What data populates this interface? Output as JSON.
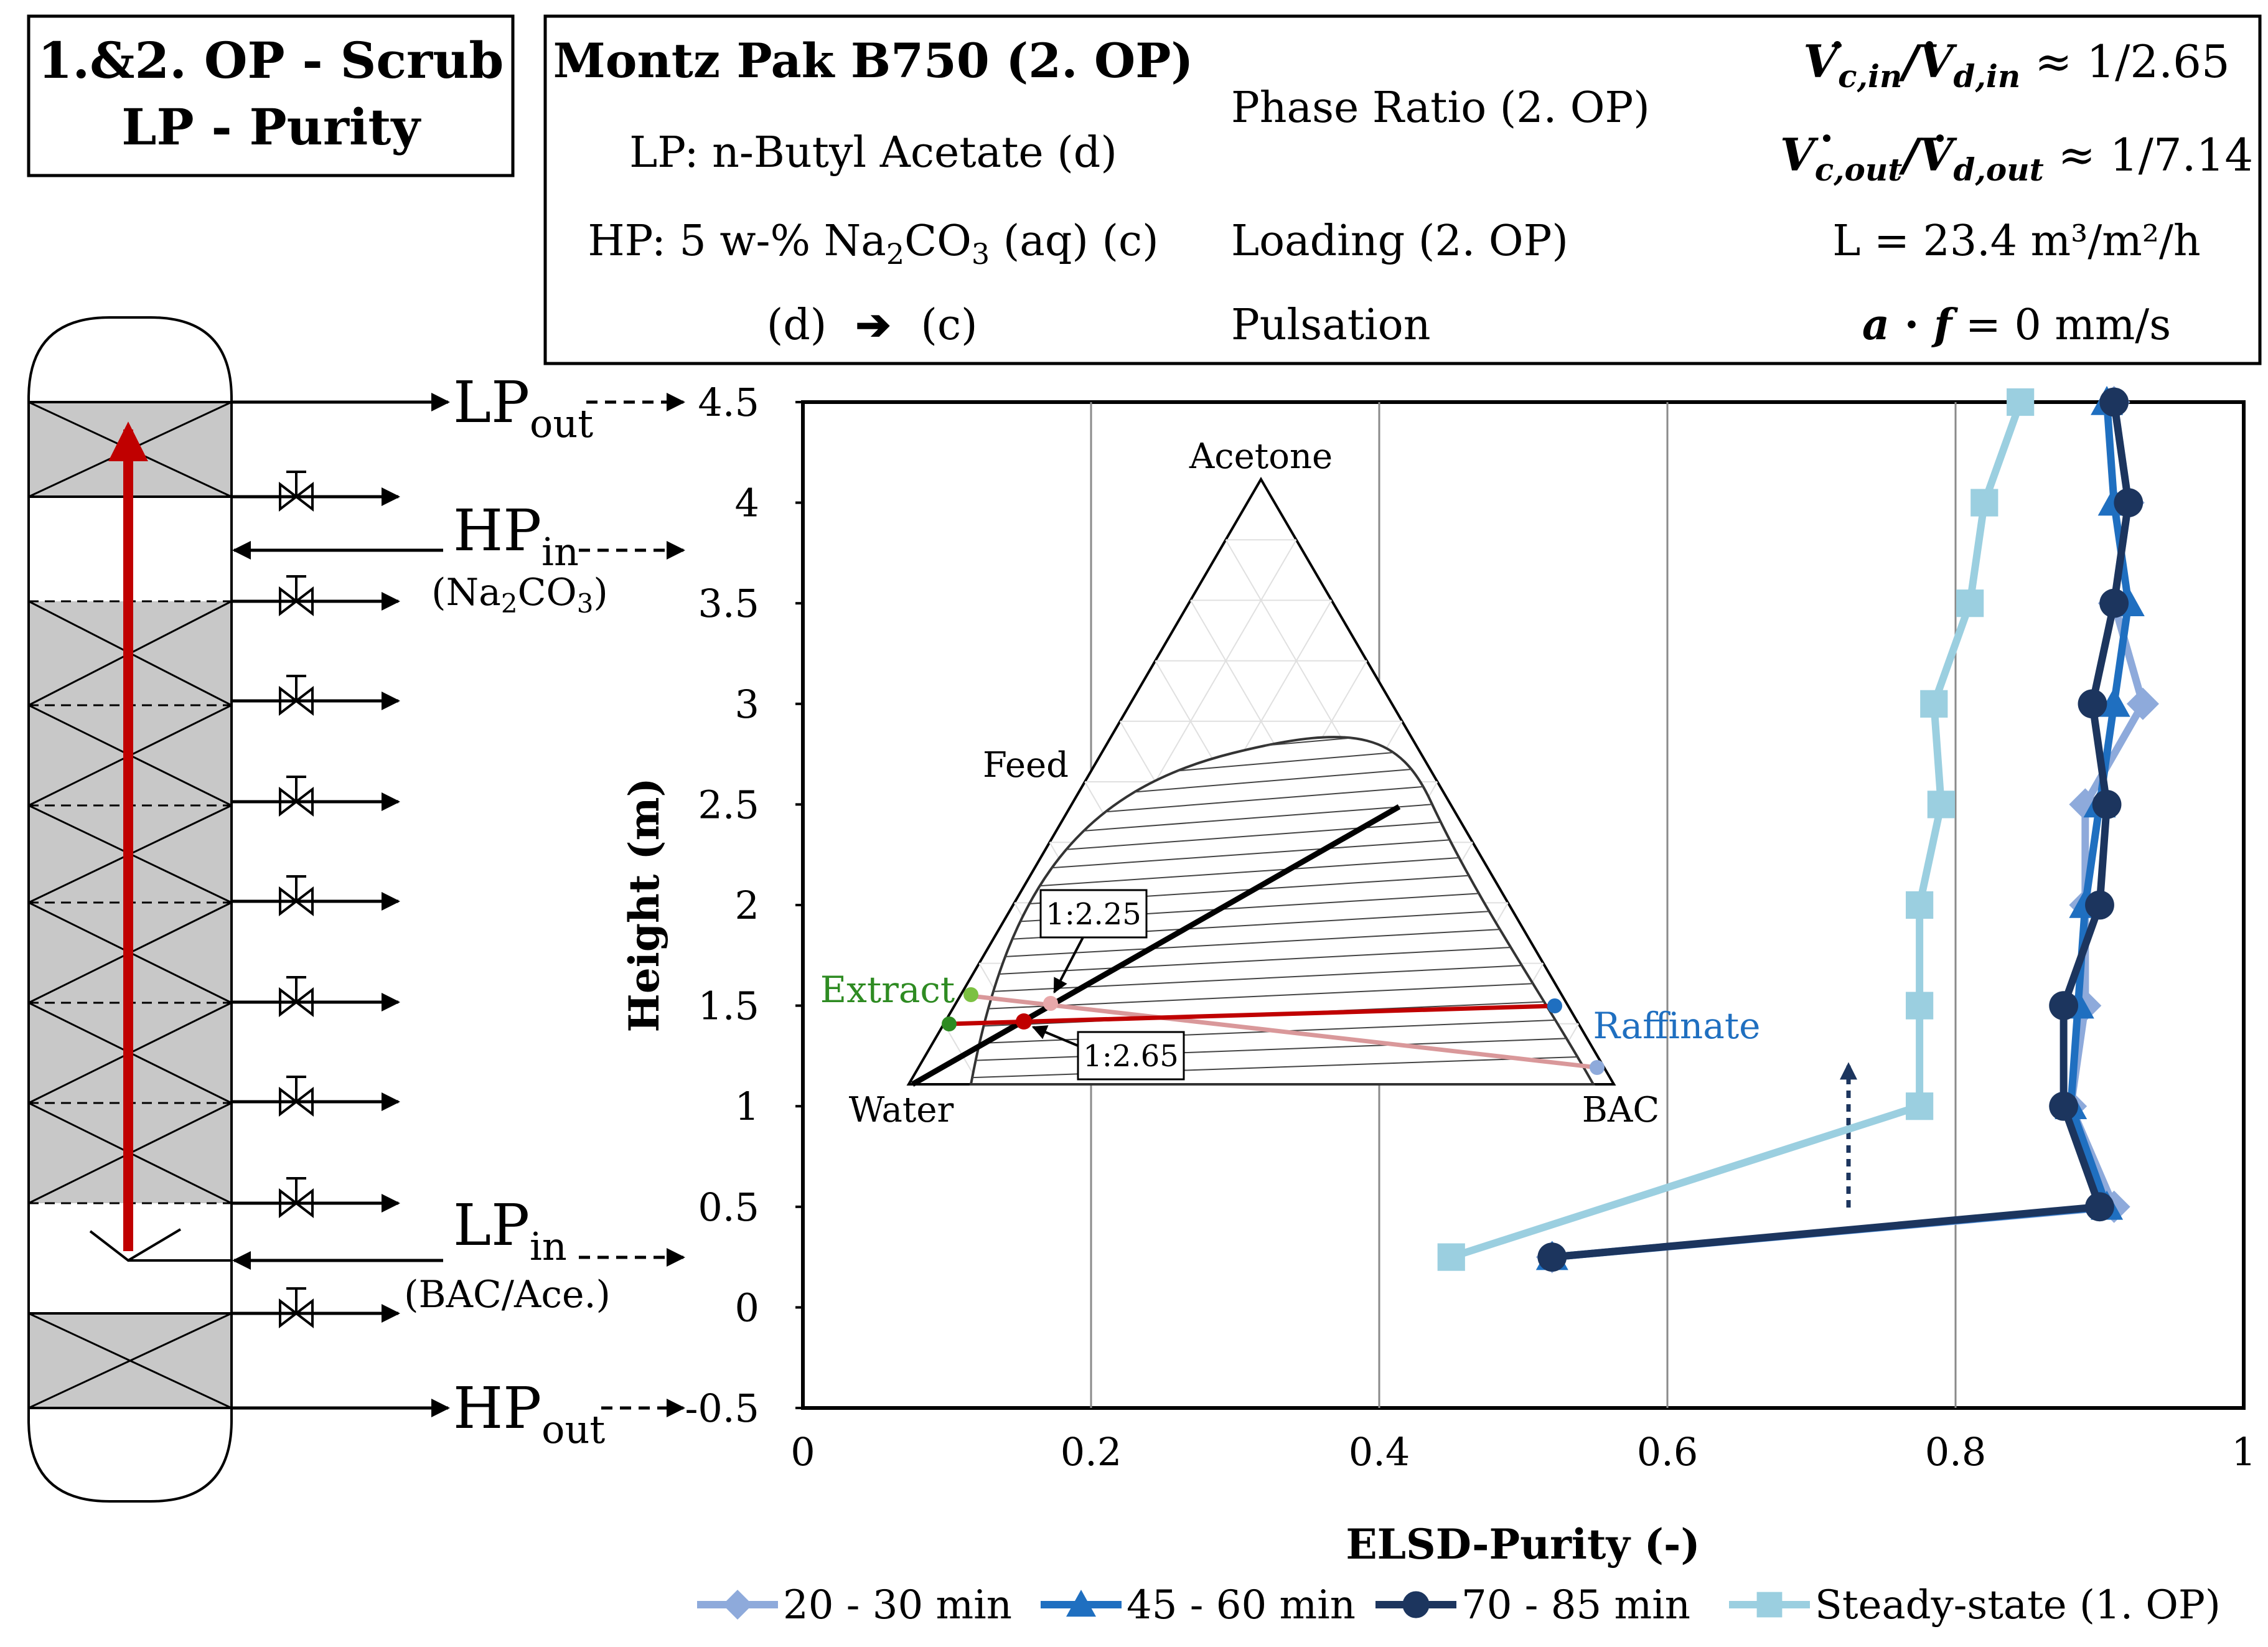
{
  "title_box": {
    "line1": "1.&2. OP - Scrub",
    "line2": "LP - Purity"
  },
  "info_box": {
    "packing": "Montz Pak B750 (2. OP)",
    "lp": "LP: n-Butyl Acetate (d)",
    "hp_prefix": "HP: 5 w-% Na",
    "hp_sub2": "2",
    "hp_mid": "CO",
    "hp_sub3": "3",
    "hp_suffix": " (aq) (c)",
    "dispersion_d": "(d)",
    "dispersion_c": "(c)",
    "phase_ratio_label": "Phase Ratio (2. OP)",
    "ratio_in_V1": "V",
    "ratio_in_sub1": "c,in",
    "ratio_in_slash": "/",
    "ratio_in_V2": "V",
    "ratio_in_sub2": "d,in",
    "ratio_in_value": " ≈ 1/2.65",
    "ratio_out_V1": "V",
    "ratio_out_sub1": "c,out",
    "ratio_out_slash": "/",
    "ratio_out_V2": "V",
    "ratio_out_sub2": "d,out",
    "ratio_out_value": " ≈ 1/7.14",
    "loading_label": "Loading (2. OP)",
    "loading_value": "L = 23.4 m³/m²/h",
    "pulsation_label": "Pulsation",
    "pulsation_a": "a",
    "pulsation_dot": " · ",
    "pulsation_f": "f",
    "pulsation_value": " = 0 mm/s"
  },
  "column": {
    "lp_out": "LP",
    "lp_out_sub": "out",
    "hp_in": "HP",
    "hp_in_sub": "in",
    "hp_in_note_pre": "(Na",
    "hp_in_note_sub2": "2",
    "hp_in_note_mid": "CO",
    "hp_in_note_sub3": "3",
    "hp_in_note_post": ")",
    "lp_in": "LP",
    "lp_in_sub": "in",
    "lp_in_note": "(BAC/Ace.)",
    "hp_out": "HP",
    "hp_out_sub": "out"
  },
  "ternary": {
    "top_label": "Acetone",
    "left_label": "Water",
    "right_label": "BAC",
    "feed_label": "Feed",
    "extract_label": "Extract",
    "raffinate_label": "Raffinate",
    "ratio1": "1:2.25",
    "ratio2": "1:2.65",
    "colors": {
      "extract": "#2e8b22",
      "raffinate": "#1f6fc0",
      "oprline1": "#d9989a",
      "oprline2": "#c00000"
    }
  },
  "chart_data": {
    "type": "line",
    "title": "",
    "xlabel": "ELSD-Purity (-)",
    "ylabel": "Height (m)",
    "xlim": [
      0,
      1
    ],
    "ylim": [
      -0.5,
      4.5
    ],
    "xticks": [
      "0",
      "0.2",
      "0.4",
      "0.6",
      "0.8",
      "1"
    ],
    "yticks": [
      "-0.5",
      "0",
      "0.5",
      "1",
      "1.5",
      "2",
      "2.5",
      "3",
      "3.5",
      "4",
      "4.5"
    ],
    "grid": "vertical",
    "legend_position": "bottom",
    "series": [
      {
        "name": "20 - 30 min",
        "color": "#8eaadb",
        "marker": "diamond",
        "x": [
          0.52,
          0.91,
          0.88,
          0.89,
          0.89,
          0.89,
          0.93,
          0.91,
          0.92,
          0.91
        ],
        "y": [
          0.25,
          0.5,
          1.0,
          1.5,
          2.0,
          2.5,
          3.0,
          3.5,
          4.0,
          4.5
        ]
      },
      {
        "name": "45 - 60 min",
        "color": "#1f6fc0",
        "marker": "triangle",
        "x": [
          0.52,
          0.905,
          0.88,
          0.885,
          0.89,
          0.9,
          0.91,
          0.92,
          0.91,
          0.905
        ],
        "y": [
          0.25,
          0.5,
          1.0,
          1.5,
          2.0,
          2.5,
          3.0,
          3.5,
          4.0,
          4.5
        ]
      },
      {
        "name": "70 - 85 min",
        "color": "#1c355e",
        "marker": "circle",
        "x": [
          0.52,
          0.9,
          0.875,
          0.875,
          0.9,
          0.905,
          0.895,
          0.91,
          0.92,
          0.91
        ],
        "y": [
          0.25,
          0.5,
          1.0,
          1.5,
          2.0,
          2.5,
          3.0,
          3.5,
          4.0,
          4.5
        ]
      },
      {
        "name": "Steady-state (1. OP)",
        "color": "#9bcfe0",
        "marker": "square",
        "x": [
          0.45,
          0.775,
          0.775,
          0.775,
          0.79,
          0.785,
          0.81,
          0.82,
          0.845
        ],
        "y": [
          0.25,
          1.0,
          1.5,
          2.0,
          2.5,
          3.0,
          3.5,
          4.0,
          4.5
        ]
      }
    ]
  }
}
